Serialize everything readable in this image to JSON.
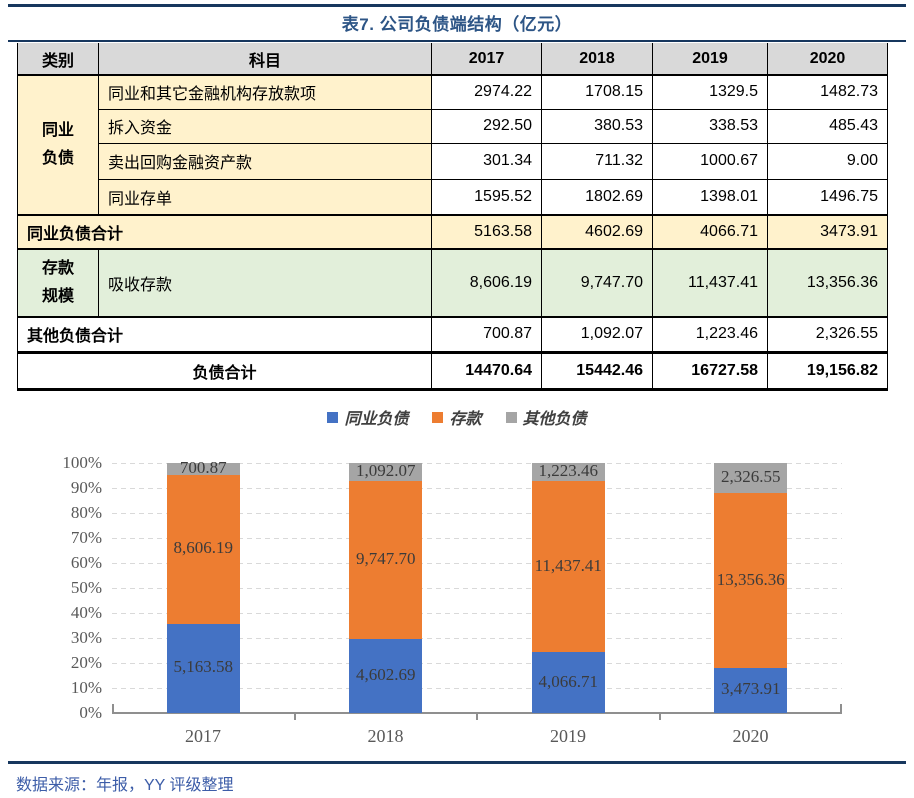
{
  "title": "表7. 公司负债端结构（亿元）",
  "colors": {
    "rule_navy": "#17375E",
    "title_blue": "#2D5586",
    "source_blue": "#3D5DA8",
    "header_bg": "#D9D9D9",
    "yellow_bg": "#FFF2CC",
    "green_bg": "#E2EFDA",
    "bar_blue": "#4472C4",
    "bar_orange": "#ED7D31",
    "bar_gray": "#A5A5A5"
  },
  "table": {
    "headers": [
      "类别",
      "科目",
      "2017",
      "2018",
      "2019",
      "2020"
    ],
    "category_interbank": "同业负债",
    "rows": [
      {
        "subject": "同业和其它金融机构存放款项",
        "values": [
          "2974.22",
          "1708.15",
          "1329.5",
          "1482.73"
        ]
      },
      {
        "subject": "拆入资金",
        "values": [
          "292.50",
          "380.53",
          "338.53",
          "485.43"
        ]
      },
      {
        "subject": "卖出回购金融资产款",
        "values": [
          "301.34",
          "711.32",
          "1000.67",
          "9.00"
        ]
      },
      {
        "subject": "同业存单",
        "values": [
          "1595.52",
          "1802.69",
          "1398.01",
          "1496.75"
        ]
      }
    ],
    "interbank_total": {
      "label": "同业负债合计",
      "values": [
        "5163.58",
        "4602.69",
        "4066.71",
        "3473.91"
      ]
    },
    "deposit": {
      "category": "存款规模",
      "subject": "吸收存款",
      "values": [
        "8,606.19",
        "9,747.70",
        "11,437.41",
        "13,356.36"
      ]
    },
    "other_total": {
      "label": "其他负债合计",
      "values": [
        "700.87",
        "1,092.07",
        "1,223.46",
        "2,326.55"
      ]
    },
    "grand_total": {
      "label": "负债合计",
      "values": [
        "14470.64",
        "15442.46",
        "16727.58",
        "19,156.82"
      ]
    }
  },
  "chart_data": {
    "type": "bar",
    "stacked": true,
    "percent_stacked": true,
    "categories": [
      "2017",
      "2018",
      "2019",
      "2020"
    ],
    "series": [
      {
        "name": "同业负债",
        "color": "#4472C4",
        "values": [
          5163.58,
          4602.69,
          4066.71,
          3473.91
        ],
        "labels": [
          "5,163.58",
          "4,602.69",
          "4,066.71",
          "3,473.91"
        ]
      },
      {
        "name": "存款",
        "color": "#ED7D31",
        "values": [
          8606.19,
          9747.7,
          11437.41,
          13356.36
        ],
        "labels": [
          "8,606.19",
          "9,747.70",
          "11,437.41",
          "13,356.36"
        ]
      },
      {
        "name": "其他负债",
        "color": "#A5A5A5",
        "values": [
          700.87,
          1092.07,
          1223.46,
          2326.55
        ],
        "labels": [
          "700.87",
          "1,092.07",
          "1,223.46",
          "2,326.55"
        ]
      }
    ],
    "y_axis": {
      "min": 0,
      "max": 100,
      "step": 10,
      "ticks": [
        "0%",
        "10%",
        "20%",
        "30%",
        "40%",
        "50%",
        "60%",
        "70%",
        "80%",
        "90%",
        "100%"
      ]
    },
    "legend_position": "top",
    "gridlines": "dashed"
  },
  "footer": {
    "source": "数据来源：年报，YY 评级整理"
  }
}
